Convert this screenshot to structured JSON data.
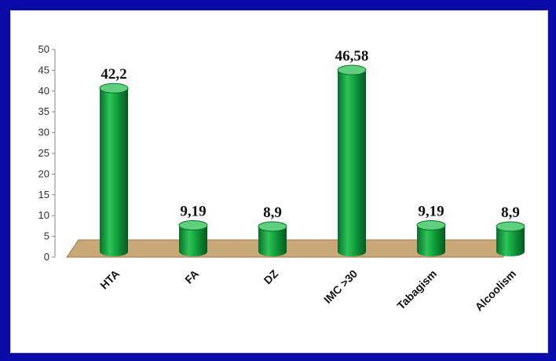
{
  "chart_data": {
    "type": "bar",
    "categories": [
      "HTA",
      "FA",
      "DZ",
      "IMC >30",
      "Tabagism",
      "Alcoolism"
    ],
    "values": [
      42.2,
      9.19,
      8.9,
      46.58,
      9.19,
      8.9
    ],
    "value_labels": [
      "42,2",
      "9,19",
      "8,9",
      "46,58",
      "9,19",
      "8,9"
    ],
    "y_ticks": [
      "0",
      "5",
      "10",
      "15",
      "20",
      "25",
      "30",
      "35",
      "40",
      "45",
      "50"
    ],
    "ylim": [
      0,
      50
    ],
    "grid": false,
    "style": "3d-cylinder",
    "colors": {
      "bar": "#10a03c",
      "bar_dark": "#06702a",
      "bar_light": "#5fd07e",
      "floor": "#c9a878",
      "floor_edge": "#9c7a4c",
      "background": "#0a0aa8"
    }
  }
}
